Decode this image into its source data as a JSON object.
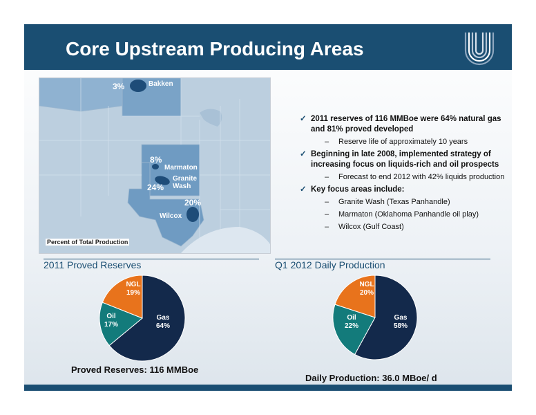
{
  "title": "Core Upstream Producing Areas",
  "map": {
    "caption": "Percent of Total Production",
    "regions": [
      {
        "name": "Bakken",
        "pct": "3%"
      },
      {
        "name": "Marmaton",
        "pct": "8%"
      },
      {
        "name": "Granite Wash",
        "pct": "24%"
      },
      {
        "name": "Wilcox",
        "pct": "20%"
      }
    ]
  },
  "bullets": [
    {
      "text": "2011 reserves of 116 MMBoe were 64% natural gas and 81%  proved developed",
      "subs": [
        "Reserve life of approximately 10 years"
      ]
    },
    {
      "text": "Beginning in late 2008, implemented strategy of increasing focus on liquids-rich and oil prospects",
      "subs": [
        "Forecast to end 2012 with 42% liquids production"
      ]
    },
    {
      "text": "Key focus areas include:",
      "subs": [
        "Granite Wash (Texas Panhandle)",
        "Marmaton (Oklahoma Panhandle oil play)",
        "Wilcox (Gulf Coast)"
      ]
    }
  ],
  "proved_reserves": {
    "title": "2011 Proved Reserves",
    "footer": "Proved Reserves: 116 MMBoe",
    "slices": [
      {
        "name": "Gas",
        "label": "64%",
        "value": 64,
        "color": "#13294b"
      },
      {
        "name": "Oil",
        "label": "17%",
        "value": 17,
        "color": "#137b7b"
      },
      {
        "name": "NGL",
        "label": "19%",
        "value": 19,
        "color": "#e8731c"
      }
    ]
  },
  "daily_production": {
    "title": "Q1 2012 Daily Production",
    "footer": "Daily Production: 36.0 MBoe/ d",
    "slices": [
      {
        "name": "Gas",
        "label": "58%",
        "value": 58,
        "color": "#13294b"
      },
      {
        "name": "Oil",
        "label": "22%",
        "value": 22,
        "color": "#137b7b"
      },
      {
        "name": "NGL",
        "label": "20%",
        "value": 20,
        "color": "#e8731c"
      }
    ]
  },
  "chart_data": [
    {
      "type": "pie",
      "title": "2011 Proved Reserves",
      "categories": [
        "Gas",
        "Oil",
        "NGL"
      ],
      "values": [
        64,
        17,
        19
      ]
    },
    {
      "type": "pie",
      "title": "Q1 2012 Daily Production",
      "categories": [
        "Gas",
        "Oil",
        "NGL"
      ],
      "values": [
        58,
        22,
        20
      ]
    }
  ]
}
